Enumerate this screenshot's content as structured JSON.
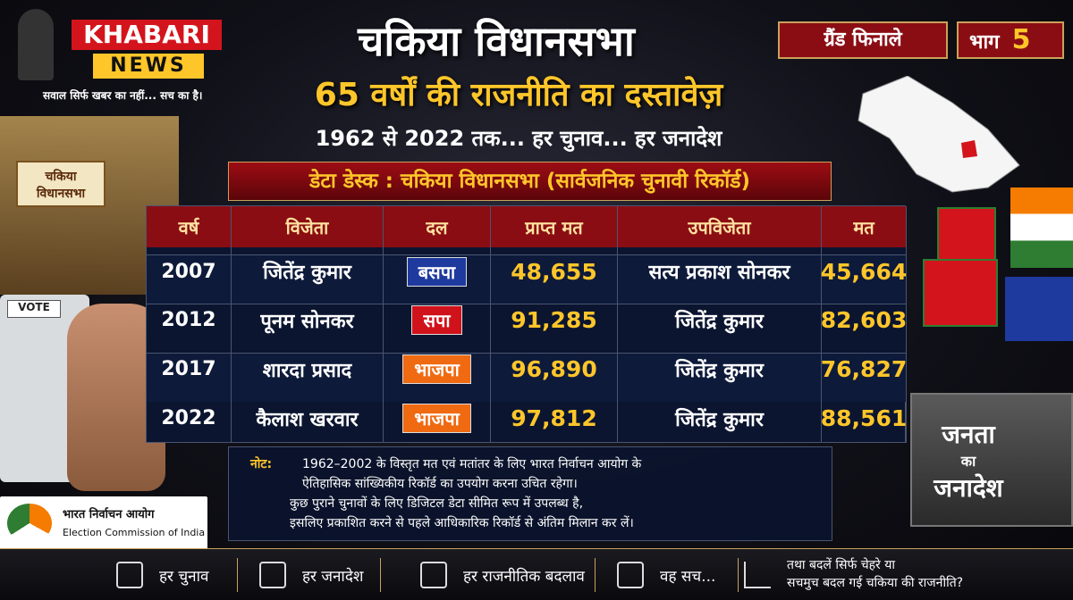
{
  "header": {
    "logo_top": "KHABARI",
    "logo_bottom": "NEWS",
    "tagline": "सवाल सिर्फ खबर का नहीं... सच का है।",
    "title": "चकिया विधानसभा",
    "subtitle": "65 वर्षों की राजनीति का दस्तावेज़",
    "period": "1962 से 2022 तक... हर चुनाव... हर जनादेश"
  },
  "badge": {
    "label": "ग्रैंड फिनाले",
    "part": "भाग",
    "number": "5"
  },
  "building_sign": "चकिया विधानसभा",
  "evm_label": "VOTE",
  "eci": {
    "hindi": "भारत निर्वाचन आयोग",
    "english": "Election Commission of India"
  },
  "box_text": {
    "line1": "जनता",
    "line2": "का",
    "line3": "जनादेश"
  },
  "table": {
    "title": "डेटा डेस्क : चकिया विधानसभा (सार्वजनिक चुनावी रिकॉर्ड)",
    "columns": [
      "वर्ष",
      "विजेता",
      "दल",
      "प्राप्त मत",
      "उपविजेता",
      "मत"
    ],
    "rows": [
      {
        "year": "2007",
        "winner": "जितेंद्र कुमार",
        "party": "बसपा",
        "party_color": "#1f3a9e",
        "votes": "48,655",
        "runner_up": "सत्य प्रकाश सोनकर",
        "runner_votes": "45,664"
      },
      {
        "year": "2012",
        "winner": "पूनम सोनकर",
        "party": "सपा",
        "party_color": "#d0121b",
        "votes": "91,285",
        "runner_up": "जितेंद्र कुमार",
        "runner_votes": "82,603"
      },
      {
        "year": "2017",
        "winner": "शारदा प्रसाद",
        "party": "भाजपा",
        "party_color": "#f06a12",
        "votes": "96,890",
        "runner_up": "जितेंद्र कुमार",
        "runner_votes": "76,827"
      },
      {
        "year": "2022",
        "winner": "कैलाश खरवार",
        "party": "भाजपा",
        "party_color": "#f06a12",
        "votes": "97,812",
        "runner_up": "जितेंद्र कुमार",
        "runner_votes": "88,561"
      }
    ]
  },
  "note": {
    "label": "नोट:",
    "lines": [
      "1962–2002 के विस्तृत मत एवं मतांतर के लिए भारत निर्वाचन आयोग के",
      "ऐतिहासिक सांख्यिकीय रिकॉर्ड का उपयोग करना उचित रहेगा।",
      "कुछ पुराने चुनावों के लिए डिजिटल डेटा सीमित रूप में उपलब्ध है,",
      "इसलिए प्रकाशित करने से पहले आधिकारिक रिकॉर्ड से अंतिम मिलान कर लें।"
    ]
  },
  "footer": {
    "items": [
      "हर चुनाव",
      "हर जनादेश",
      "हर राजनीतिक बदलाव",
      "वह सच..."
    ],
    "question": [
      "तथा बदलें सिर्फ चेहरे या",
      "सचमुच बदल गई चकिया की राजनीति?"
    ]
  }
}
